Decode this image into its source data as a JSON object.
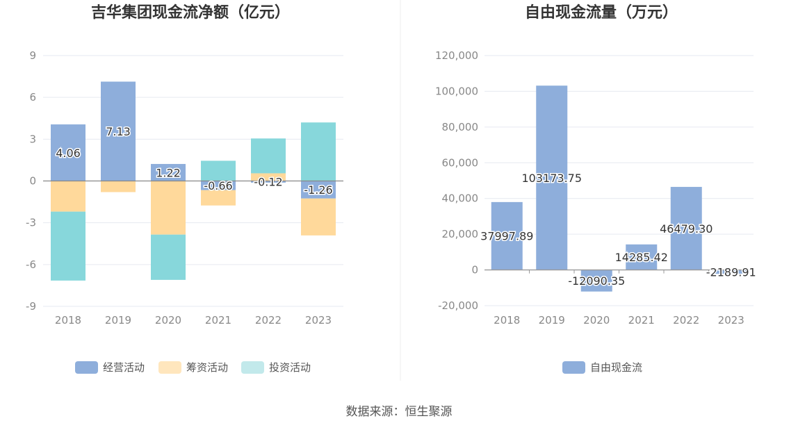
{
  "source": "数据来源：恒生聚源",
  "chart_data": [
    {
      "type": "bar",
      "stacked": true,
      "title": "吉华集团现金流净额（亿元）",
      "categories": [
        "2018",
        "2019",
        "2020",
        "2021",
        "2022",
        "2023"
      ],
      "ylim": [
        -9,
        9
      ],
      "yticks": [
        "9",
        "6",
        "3",
        "0",
        "-3",
        "-6",
        "-9"
      ],
      "ytick_values": [
        9,
        6,
        3,
        0,
        -3,
        -6,
        -9
      ],
      "grid": true,
      "legend_position": "bottom",
      "series": [
        {
          "name": "经营活动",
          "color": "#8eaedb",
          "values": [
            4.06,
            7.13,
            1.22,
            -0.66,
            -0.12,
            -1.26
          ],
          "labels": [
            "4.06",
            "7.13",
            "1.22",
            "-0.66",
            "-0.12",
            "-1.26"
          ]
        },
        {
          "name": "筹资活动",
          "color": "#ffd99b",
          "values": [
            -2.2,
            -0.8,
            -3.85,
            -1.1,
            0.55,
            -2.65
          ]
        },
        {
          "name": "投资活动",
          "color": "#87d7db",
          "values": [
            -4.95,
            0,
            -3.25,
            1.45,
            2.5,
            4.2
          ]
        }
      ],
      "legend_colors": [
        "#8eaedb",
        "#ffe6bd",
        "#c2e9eb"
      ]
    },
    {
      "type": "bar",
      "title": "自由现金流量（万元）",
      "categories": [
        "2018",
        "2019",
        "2020",
        "2021",
        "2022",
        "2023"
      ],
      "ylim": [
        -20000,
        120000
      ],
      "yticks": [
        "120,000",
        "100,000",
        "80,000",
        "60,000",
        "40,000",
        "20,000",
        "0",
        "-20,000"
      ],
      "ytick_values": [
        120000,
        100000,
        80000,
        60000,
        40000,
        20000,
        0,
        -20000
      ],
      "grid": true,
      "legend_position": "bottom",
      "series": [
        {
          "name": "自由现金流",
          "color": "#8eaedb",
          "values": [
            37997.89,
            103173.75,
            -12090.35,
            14285.42,
            46479.3,
            -2189.91
          ],
          "labels": [
            "37997.89",
            "103173.75",
            "-12090.35",
            "14285.42",
            "46479.30",
            "-2189.91"
          ]
        }
      ]
    }
  ]
}
